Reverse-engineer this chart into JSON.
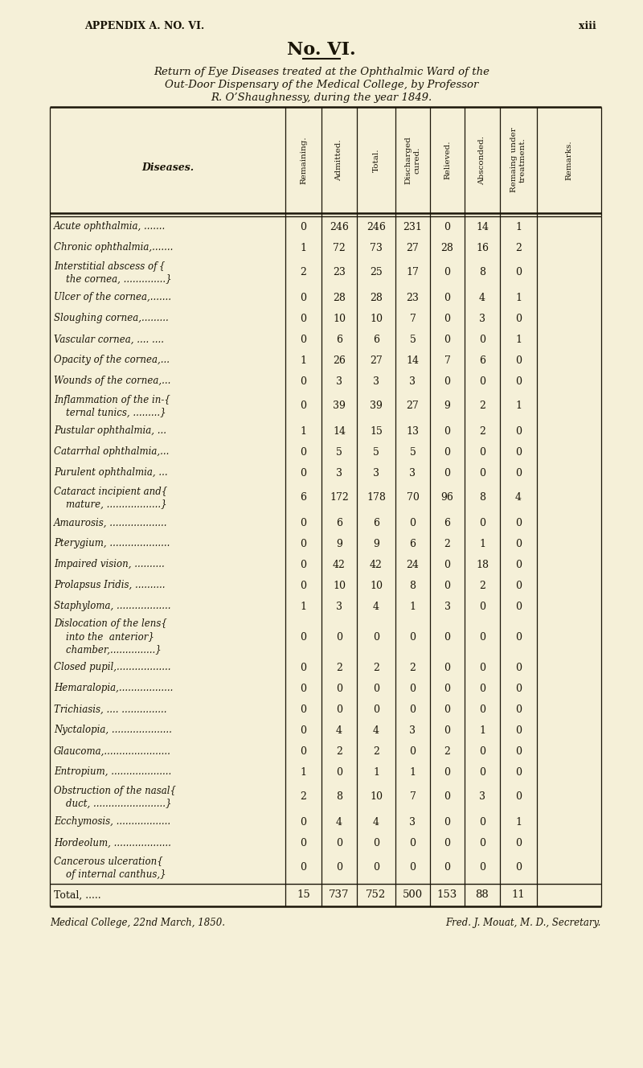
{
  "page_header_left": "APPENDIX A. NO. VI.",
  "page_header_right": "xiii",
  "col_headers": [
    "Remaining.",
    "Admitted.",
    "Total.",
    "Discharged\ncured.",
    "Relieved.",
    "Absconded.",
    "Remaing under\ntreatment.",
    "Remarks."
  ],
  "rows": [
    {
      "label": [
        "Acute ophthalmia, ......."
      ],
      "data": [
        0,
        246,
        246,
        231,
        0,
        14,
        1
      ]
    },
    {
      "label": [
        "Chronic ophthalmia,......."
      ],
      "data": [
        1,
        72,
        73,
        27,
        28,
        16,
        2
      ]
    },
    {
      "label": [
        "Interstitial abscess of {",
        "    the cornea, ..............}"
      ],
      "data": [
        2,
        23,
        25,
        17,
        0,
        8,
        0
      ]
    },
    {
      "label": [
        "Ulcer of the cornea,......."
      ],
      "data": [
        0,
        28,
        28,
        23,
        0,
        4,
        1
      ]
    },
    {
      "label": [
        "Sloughing cornea,........."
      ],
      "data": [
        0,
        10,
        10,
        7,
        0,
        3,
        0
      ]
    },
    {
      "label": [
        "Vascular cornea, .... ...."
      ],
      "data": [
        0,
        6,
        6,
        5,
        0,
        0,
        1
      ]
    },
    {
      "label": [
        "Opacity of the cornea,..."
      ],
      "data": [
        1,
        26,
        27,
        14,
        7,
        6,
        0
      ]
    },
    {
      "label": [
        "Wounds of the cornea,..."
      ],
      "data": [
        0,
        3,
        3,
        3,
        0,
        0,
        0
      ]
    },
    {
      "label": [
        "Inflammation of the in-{",
        "    ternal tunics, .........}"
      ],
      "data": [
        0,
        39,
        39,
        27,
        9,
        2,
        1
      ]
    },
    {
      "label": [
        "Pustular ophthalmia, ..."
      ],
      "data": [
        1,
        14,
        15,
        13,
        0,
        2,
        0
      ]
    },
    {
      "label": [
        "Catarrhal ophthalmia,..."
      ],
      "data": [
        0,
        5,
        5,
        5,
        0,
        0,
        0
      ]
    },
    {
      "label": [
        "Purulent ophthalmia, ..."
      ],
      "data": [
        0,
        3,
        3,
        3,
        0,
        0,
        0
      ]
    },
    {
      "label": [
        "Cataract incipient and{",
        "    mature, ..................}"
      ],
      "data": [
        6,
        172,
        178,
        70,
        96,
        8,
        4
      ]
    },
    {
      "label": [
        "Amaurosis, ..................."
      ],
      "data": [
        0,
        6,
        6,
        0,
        6,
        0,
        0
      ]
    },
    {
      "label": [
        "Pterygium, ...................."
      ],
      "data": [
        0,
        9,
        9,
        6,
        2,
        1,
        0
      ]
    },
    {
      "label": [
        "Impaired vision, .........."
      ],
      "data": [
        0,
        42,
        42,
        24,
        0,
        18,
        0
      ]
    },
    {
      "label": [
        "Prolapsus Iridis, .........."
      ],
      "data": [
        0,
        10,
        10,
        8,
        0,
        2,
        0
      ]
    },
    {
      "label": [
        "Staphyloma, .................."
      ],
      "data": [
        1,
        3,
        4,
        1,
        3,
        0,
        0
      ]
    },
    {
      "label": [
        "Dislocation of the lens{",
        "    into the  anterior}",
        "    chamber,...............}"
      ],
      "data": [
        0,
        0,
        0,
        0,
        0,
        0,
        0
      ]
    },
    {
      "label": [
        "Closed pupil,.................."
      ],
      "data": [
        0,
        2,
        2,
        2,
        0,
        0,
        0
      ]
    },
    {
      "label": [
        "Hemaralopia,.................."
      ],
      "data": [
        0,
        0,
        0,
        0,
        0,
        0,
        0
      ]
    },
    {
      "label": [
        "Trichiasis, .... ..............."
      ],
      "data": [
        0,
        0,
        0,
        0,
        0,
        0,
        0
      ]
    },
    {
      "label": [
        "Nyctalopia, ...................."
      ],
      "data": [
        0,
        4,
        4,
        3,
        0,
        1,
        0
      ]
    },
    {
      "label": [
        "Glaucoma,......................"
      ],
      "data": [
        0,
        2,
        2,
        0,
        2,
        0,
        0
      ]
    },
    {
      "label": [
        "Entropium, ...................."
      ],
      "data": [
        1,
        0,
        1,
        1,
        0,
        0,
        0
      ]
    },
    {
      "label": [
        "Obstruction of the nasal{",
        "    duct, ........................}"
      ],
      "data": [
        2,
        8,
        10,
        7,
        0,
        3,
        0
      ]
    },
    {
      "label": [
        "Ecchymosis, .................."
      ],
      "data": [
        0,
        4,
        4,
        3,
        0,
        0,
        1
      ]
    },
    {
      "label": [
        "Hordeolum, ..................."
      ],
      "data": [
        0,
        0,
        0,
        0,
        0,
        0,
        0
      ]
    },
    {
      "label": [
        "Cancerous ulceration{",
        "    of internal canthus,}"
      ],
      "data": [
        0,
        0,
        0,
        0,
        0,
        0,
        0
      ]
    }
  ],
  "total_label": "Total, .....",
  "total_data": [
    15,
    737,
    752,
    500,
    153,
    88,
    11
  ],
  "footer_left": "Medical College, 22nd March, 1850.",
  "footer_right": "Fred. J. Mouat, M. D., Secretary.",
  "bg_color": "#f5f0d8",
  "text_color": "#1a1508",
  "line_color": "#1a1508"
}
